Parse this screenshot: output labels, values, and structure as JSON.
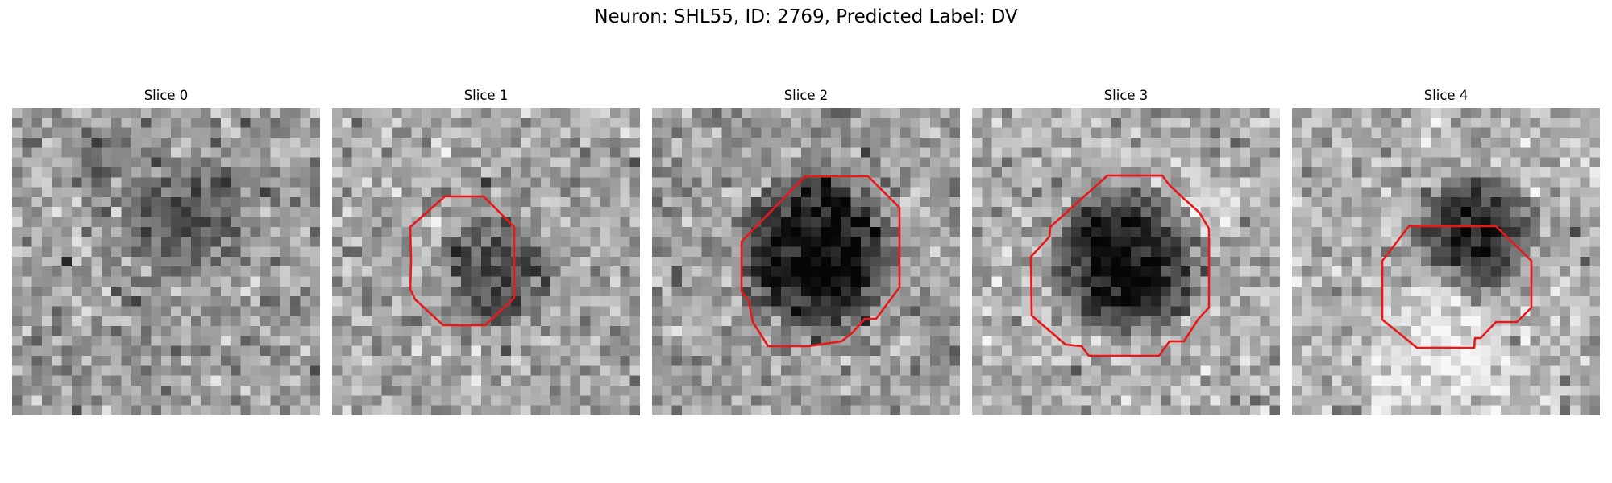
{
  "figure": {
    "title": "Neuron: SHL55, ID: 2769, Predicted Label: DV"
  },
  "panels": [
    {
      "title": "Slice 0",
      "has_outline": false
    },
    {
      "title": "Slice 1",
      "has_outline": true
    },
    {
      "title": "Slice 2",
      "has_outline": true
    },
    {
      "title": "Slice 3",
      "has_outline": true
    },
    {
      "title": "Slice 4",
      "has_outline": true
    }
  ],
  "colors": {
    "outline": "#e8191a",
    "background": "#ffffff",
    "colormap": "gray"
  }
}
